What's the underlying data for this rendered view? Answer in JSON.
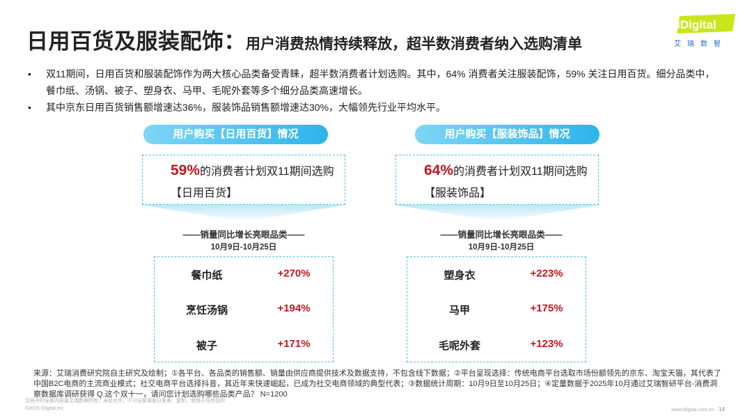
{
  "header": {
    "title_main": "日用百货及服装配饰：",
    "title_sub": "用户消费热情持续释放，超半数消费者纳入选购清单"
  },
  "logo": {
    "brand": "iDigital",
    "cn": "艾瑞数智"
  },
  "bullets": [
    {
      "symbol": "•",
      "text": "双11期间，日用百货和服装配饰作为两大核心品类备受青睐，超半数消费者计划选购。其中，64% 消费者关注服装配饰，59% 关注日用百货。细分品类中，餐巾纸、汤锅、被子、塑身衣、马甲、毛呢外套等多个细分品类高速增长。"
    },
    {
      "symbol": "•",
      "text": "其中京东日用百货销售额增速达36%，服装饰品销售额增速达30%，大幅领先行业平均水平。"
    }
  ],
  "panels": {
    "left": {
      "title": "用户购买【日用百货】情况",
      "pct": "59%",
      "line1": "的消费者计划双11期间选购",
      "line2": "【日用百货】",
      "section_title": "——销量同比增长亮眼品类——",
      "date_range": "10月9日-10月25日",
      "rows": [
        {
          "name": "餐巾纸",
          "value": "+270%"
        },
        {
          "name": "烹饪汤锅",
          "value": "+194%"
        },
        {
          "name": "被子",
          "value": "+171%"
        }
      ]
    },
    "right": {
      "title": "用户购买【服装饰品】情况",
      "pct": "64%",
      "line1": "的消费者计划双11期间选购",
      "line2": "【服装饰品】",
      "section_title": "——销量同比增长亮眼品类——",
      "date_range": "10月9日-10月25日",
      "rows": [
        {
          "name": "塑身衣",
          "value": "+223%"
        },
        {
          "name": "马甲",
          "value": "+175%"
        },
        {
          "name": "毛呢外套",
          "value": "+123%"
        }
      ]
    }
  },
  "source": "来源：艾瑞消费研究院自主研究及绘制；①各平台、各品类的销售额、销量由供应商提供技术及数据支持，不包含线下数据；②平台呈现选择：传统电商平台选取市场份额领先的京东、淘宝天猫，其代表了中国B2C电商的主流商业模式；社交电商平台选择抖音，其近年来快速崛起，已成为社交电商领域的典型代表；③数据统计周期：10月9日至10月25日；④定量数据于2025年10月通过艾瑞智研平台-消费洞察数据库调研获得 Q.这个双十一，请问您计划选购哪些品类产品？ N=1200",
  "footer": {
    "line1": "文档中的全部内容属艾瑞数据所有，未经允许，不可全部或部分发表、复制、使用于任何目的",
    "line2": "©2025 iDigital Inc.",
    "website": "www.idigital.com.cn",
    "page": "14"
  },
  "colors": {
    "accent_blue": "#2db4ea",
    "accent_red": "#c3161c",
    "logo_green": "#c8e619"
  }
}
